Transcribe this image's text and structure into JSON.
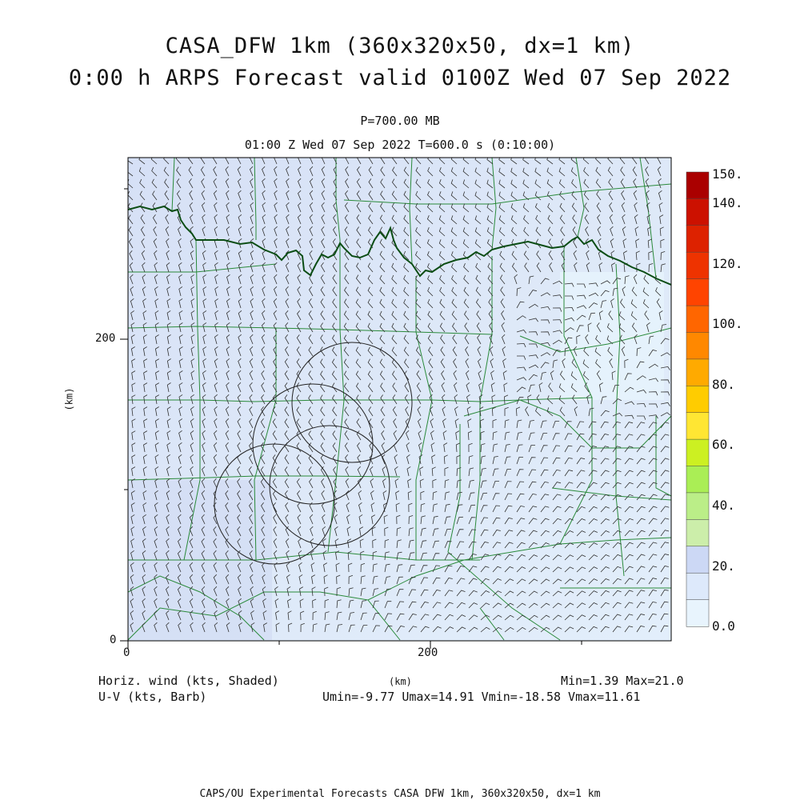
{
  "header": {
    "title_line1": "CASA_DFW 1km (360x320x50, dx=1 km)",
    "title_line2": "0:00 h ARPS Forecast valid 0100Z Wed 07 Sep 2022",
    "pressure_level": "P=700.00 MB",
    "time_line": "01:00 Z Wed 07 Sep 2022    T=600.0 s (0:10:00)"
  },
  "axes": {
    "x_ticks": [
      "0",
      "200"
    ],
    "y_ticks": [
      "0",
      "200"
    ],
    "x_unit": "(km)",
    "y_unit": "(km)",
    "x_range": [
      0,
      360
    ],
    "y_range": [
      0,
      320
    ]
  },
  "colorbar": {
    "labels": [
      "150.",
      "140.",
      "120.",
      "100.",
      "80.",
      "60.",
      "40.",
      "20.",
      "0.0"
    ],
    "colors": [
      "#aa0000",
      "#cc1100",
      "#dd2200",
      "#ee3300",
      "#ff4400",
      "#ff6600",
      "#ff8800",
      "#ffaa00",
      "#ffcc00",
      "#ffe633",
      "#ccf022",
      "#aaee55",
      "#bbee88",
      "#cceeaa",
      "#ccd8f5",
      "#dde9fb",
      "#e8f4fd"
    ]
  },
  "footer_left": {
    "field1": "Horiz. wind (kts, Shaded)",
    "field2": "U-V (kts, Barb)"
  },
  "footer_right": {
    "minmax": "Min=1.39  Max=21.0",
    "uv_stats": "Umin=-9.77 Umax=14.91 Vmin=-18.58 Vmax=11.61"
  },
  "bottom_credit": "CAPS/OU Experimental Forecasts  CASA DFW 1km, 360x320x50, dx=1 km"
}
